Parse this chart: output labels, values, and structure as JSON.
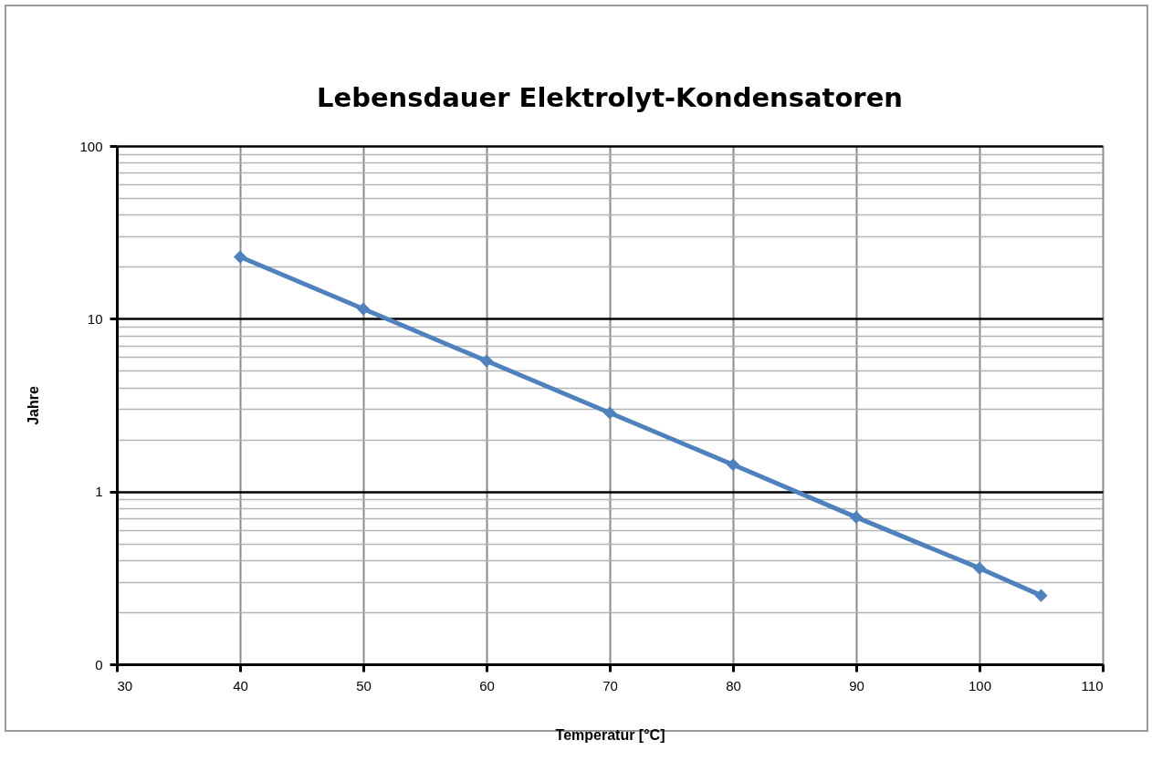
{
  "chart_data": {
    "type": "line",
    "title": "Lebensdauer Elektrolyt-Kondensatoren",
    "xlabel": "Temperatur [°C]",
    "ylabel": "Jahre",
    "x": [
      40,
      50,
      60,
      70,
      80,
      90,
      100,
      105
    ],
    "series": [
      {
        "color": "#4f81bd",
        "values": [
          22.8,
          11.4,
          5.7,
          2.85,
          1.43,
          0.71,
          0.36,
          0.25
        ]
      }
    ],
    "xlim": [
      30,
      110
    ],
    "xticks": [
      30,
      40,
      50,
      60,
      70,
      80,
      90,
      100,
      110
    ],
    "ylim": [
      0.1,
      100
    ],
    "yticks": [
      {
        "value": 0.1,
        "label": "0"
      },
      1,
      10,
      100
    ],
    "log": "y",
    "grid": true,
    "marker": "diamond",
    "line_style": "solid",
    "legend": false
  }
}
